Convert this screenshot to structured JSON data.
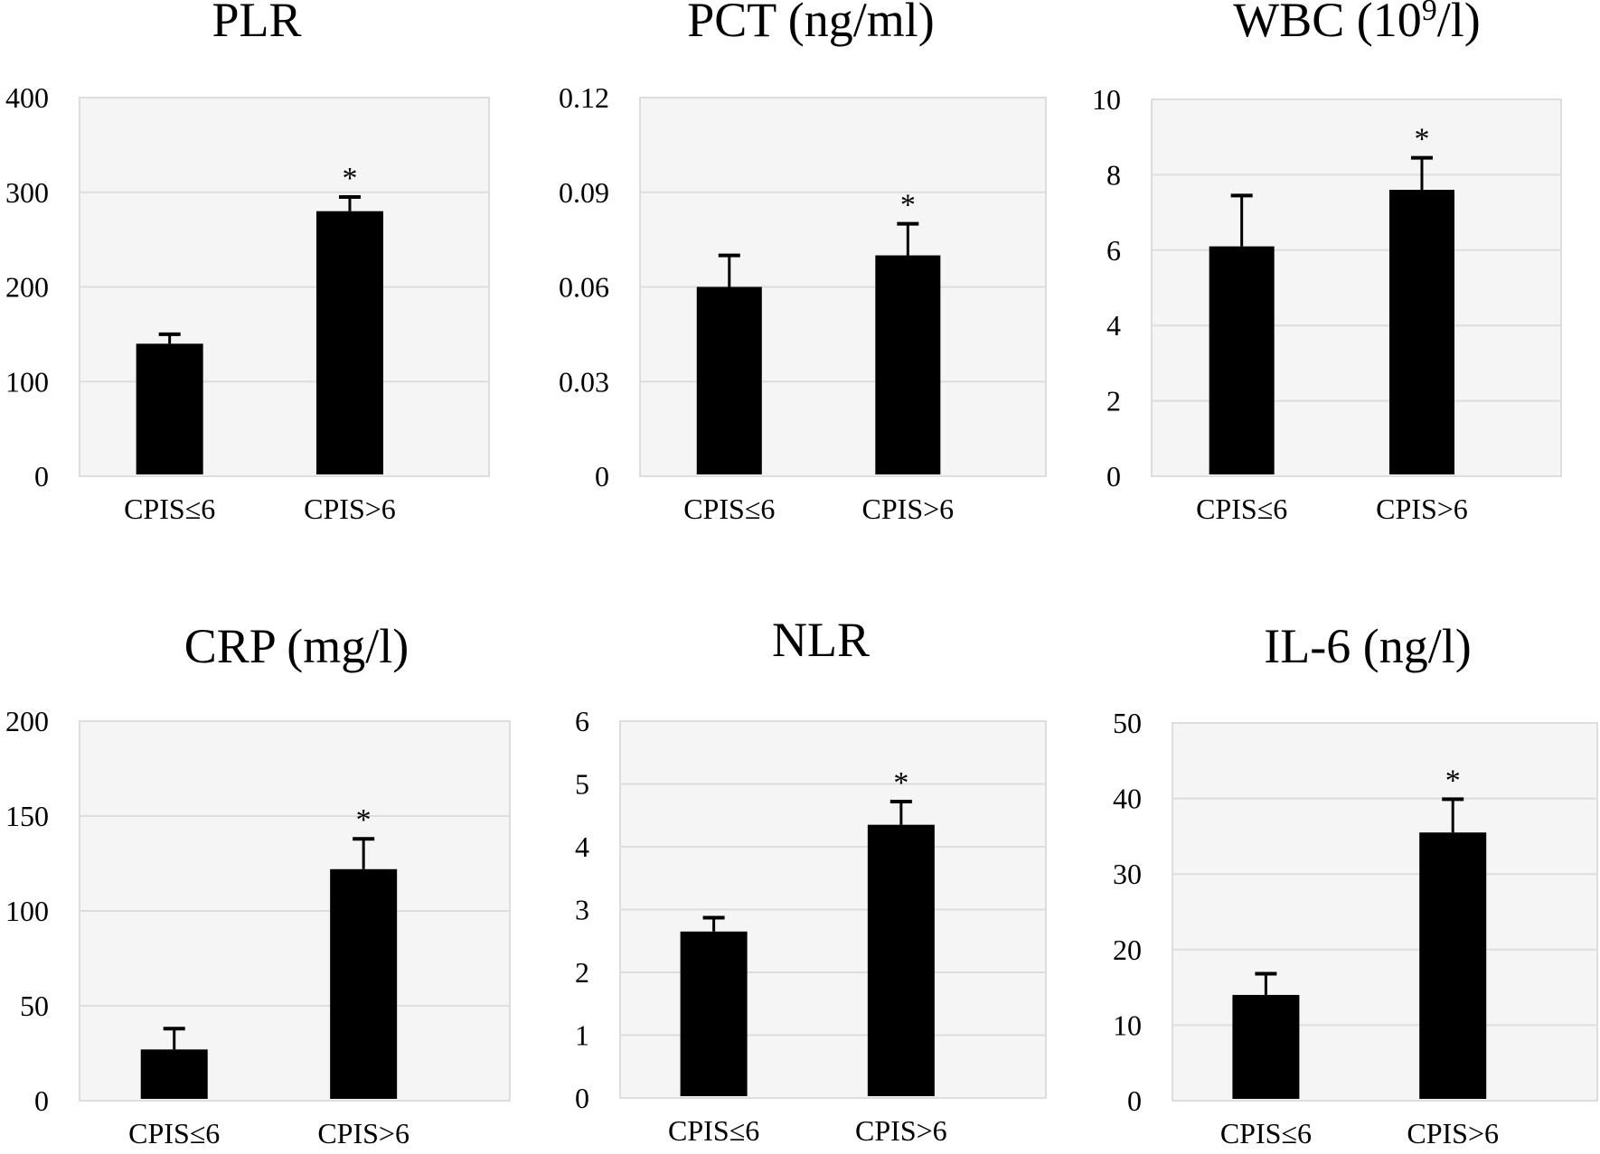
{
  "chart_data": [
    {
      "type": "bar",
      "title": "PLR",
      "categories": [
        "CPIS≤6",
        "CPIS>6"
      ],
      "values": [
        140,
        280
      ],
      "errors": [
        10,
        15
      ],
      "significance": [
        "",
        "*"
      ],
      "yticks": [
        "0",
        "100",
        "200",
        "300",
        "400"
      ],
      "ylim": [
        0,
        400
      ],
      "grid": true
    },
    {
      "type": "bar",
      "title": "PCT (ng/ml)",
      "categories": [
        "CPIS≤6",
        "CPIS>6"
      ],
      "values": [
        0.06,
        0.07
      ],
      "errors": [
        0.01,
        0.01
      ],
      "significance": [
        "",
        "*"
      ],
      "yticks": [
        "0",
        "0.03",
        "0.06",
        "0.09",
        "0.12"
      ],
      "ylim": [
        0,
        0.12
      ],
      "grid": true
    },
    {
      "type": "bar",
      "title": "WBC (10",
      "title_sup": "9",
      "title_tail": "/l)",
      "categories": [
        "CPIS≤6",
        "CPIS>6"
      ],
      "values": [
        6.1,
        7.6
      ],
      "errors": [
        1.35,
        0.85
      ],
      "significance": [
        "",
        "*"
      ],
      "yticks": [
        "0",
        "2",
        "4",
        "6",
        "8",
        "10"
      ],
      "ylim": [
        0,
        10
      ],
      "grid": true
    },
    {
      "type": "bar",
      "title": "CRP (mg/l)",
      "categories": [
        "CPIS≤6",
        "CPIS>6"
      ],
      "values": [
        27,
        122
      ],
      "errors": [
        11,
        16
      ],
      "significance": [
        "",
        "*"
      ],
      "yticks": [
        "0",
        "50",
        "100",
        "150",
        "200"
      ],
      "ylim": [
        0,
        200
      ],
      "grid": true
    },
    {
      "type": "bar",
      "title": "NLR",
      "categories": [
        "CPIS≤6",
        "CPIS>6"
      ],
      "values": [
        2.65,
        4.35
      ],
      "errors": [
        0.22,
        0.37
      ],
      "significance": [
        "",
        "*"
      ],
      "yticks": [
        "0",
        "1",
        "2",
        "3",
        "4",
        "5",
        "6"
      ],
      "ylim": [
        0,
        6
      ],
      "grid": true
    },
    {
      "type": "bar",
      "title": "IL-6 (ng/l)",
      "categories": [
        "CPIS≤6",
        "CPIS>6"
      ],
      "values": [
        14,
        35.5
      ],
      "errors": [
        2.8,
        4.4
      ],
      "significance": [
        "",
        "*"
      ],
      "yticks": [
        "0",
        "10",
        "20",
        "30",
        "40",
        "50"
      ],
      "ylim": [
        0,
        50
      ],
      "grid": true
    }
  ],
  "colors": {
    "bar": "#000000",
    "plot_background": "#f5f5f5",
    "grid": "#dddddd",
    "page": "#ffffff"
  }
}
